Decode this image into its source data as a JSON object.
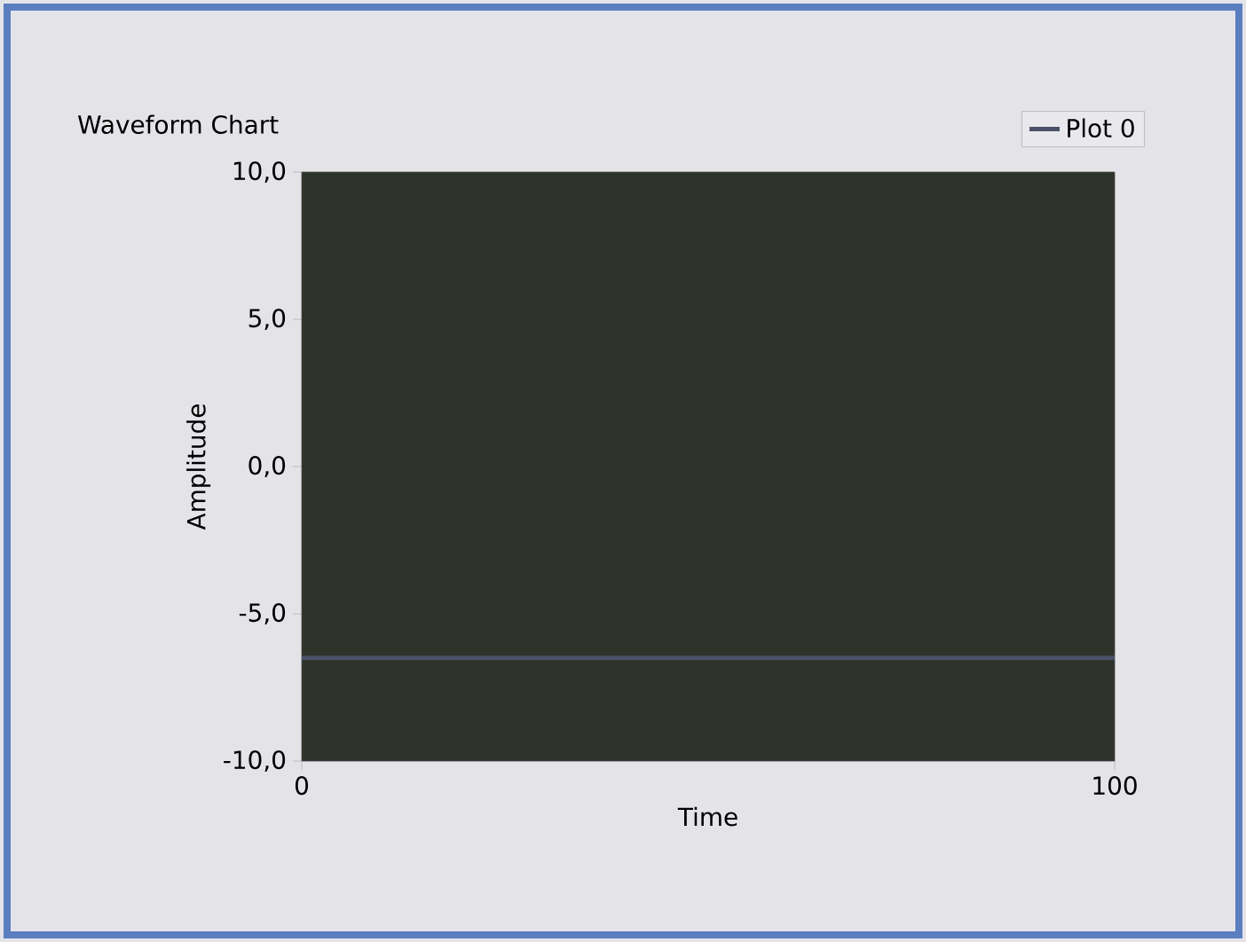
{
  "chart_data": {
    "type": "line",
    "title": "Waveform Chart",
    "xlabel": "Time",
    "ylabel": "Amplitude",
    "x": [
      0,
      100
    ],
    "series": [
      {
        "name": "Plot 0",
        "color": "#4b5168",
        "values": [
          -6.5,
          -6.5
        ]
      }
    ],
    "xlim": [
      0,
      100
    ],
    "ylim": [
      -10,
      10
    ],
    "xticks": [
      0,
      100
    ],
    "yticks": [
      {
        "value": -10,
        "label": "-10,0"
      },
      {
        "value": -5,
        "label": "-5,0"
      },
      {
        "value": 0,
        "label": "0,0"
      },
      {
        "value": 5,
        "label": "5,0"
      },
      {
        "value": 10,
        "label": "10,0"
      }
    ],
    "legend": "top right"
  }
}
